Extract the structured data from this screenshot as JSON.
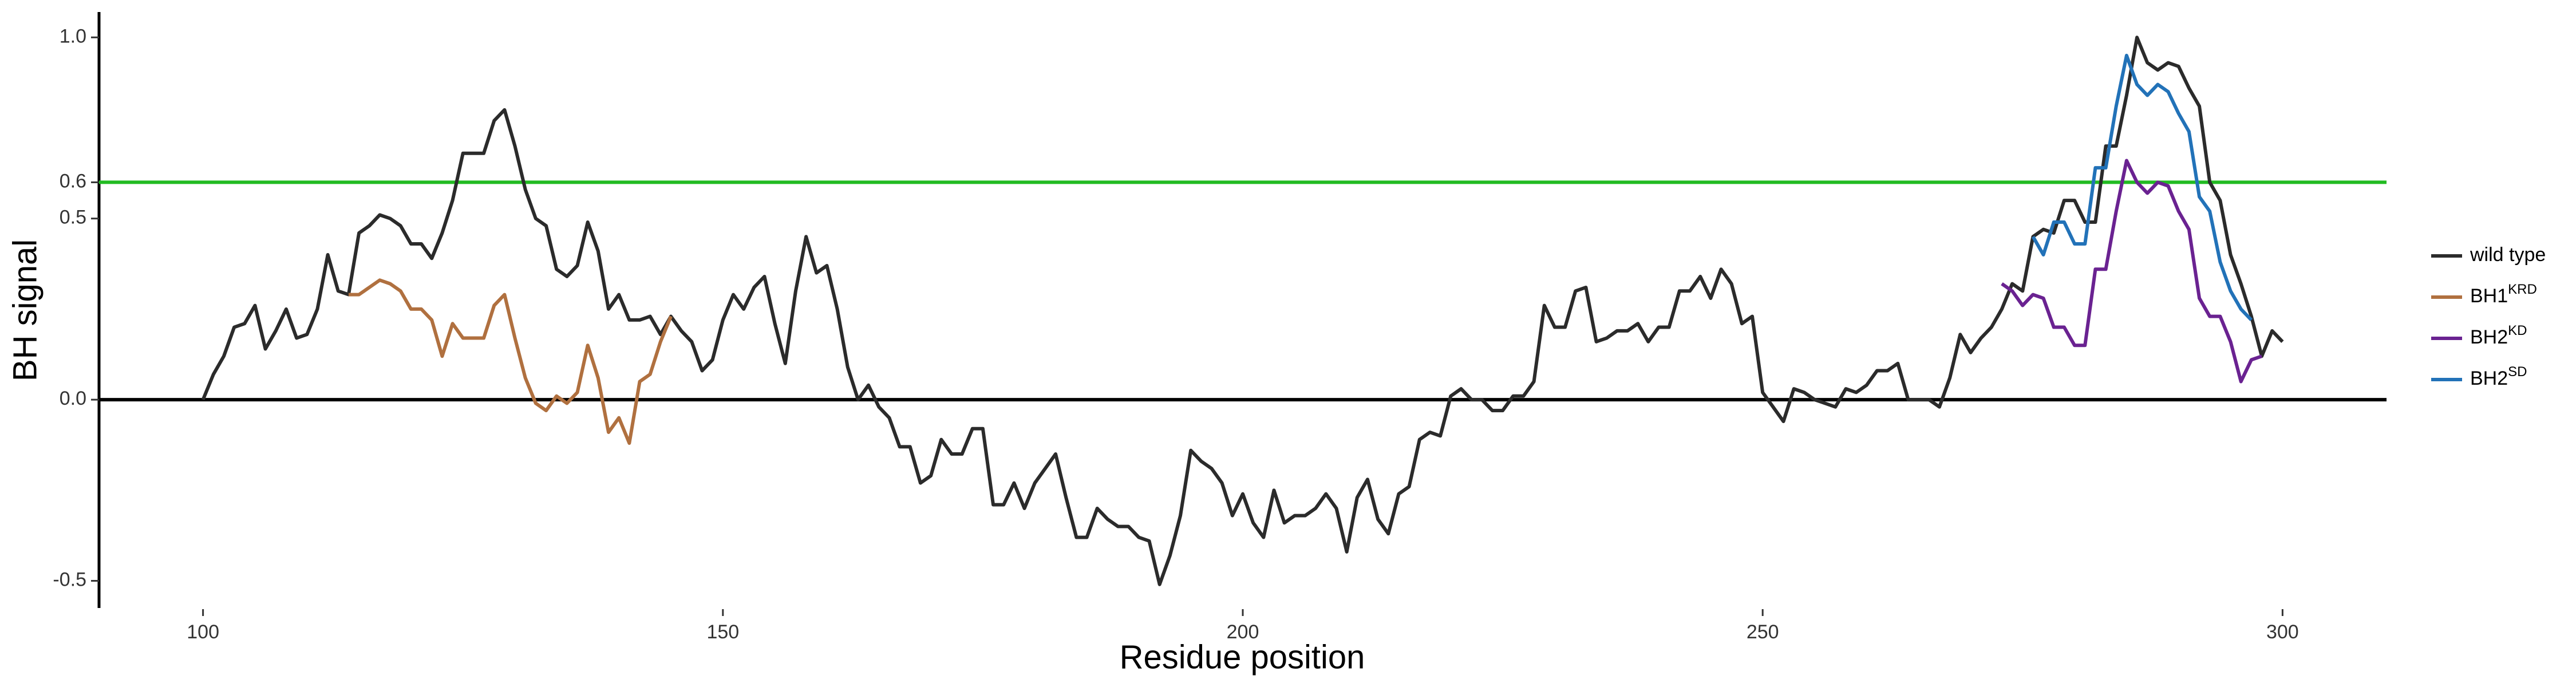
{
  "chart_data": {
    "type": "line",
    "xlabel": "Residue position",
    "ylabel": "BH signal",
    "xlim": [
      90,
      310
    ],
    "ylim": [
      -0.575,
      1.07
    ],
    "xticks": [
      100,
      150,
      200,
      250,
      300
    ],
    "yticks": [
      -0.5,
      {
        "value": 0,
        "label": "0.0"
      },
      0.5,
      0.6,
      {
        "value": 1,
        "label": "1.0"
      }
    ],
    "hlines": [
      {
        "value": 0.6,
        "color": "#22bb22"
      },
      {
        "value": 0,
        "color": "#000000"
      }
    ],
    "legend": "right",
    "series": [
      {
        "name": "wild type",
        "color": "#2b2b2b",
        "x": [
          100,
          101,
          102,
          103,
          104,
          105,
          106,
          107,
          108,
          109,
          110,
          111,
          112,
          113,
          114,
          115,
          116,
          117,
          118,
          119,
          120,
          121,
          122,
          123,
          124,
          125,
          126,
          127,
          128,
          129,
          130,
          131,
          132,
          133,
          134,
          135,
          136,
          137,
          138,
          139,
          140,
          141,
          142,
          143,
          144,
          145,
          146,
          147,
          148,
          149,
          150,
          151,
          152,
          153,
          154,
          155,
          156,
          157,
          158,
          159,
          160,
          161,
          162,
          163,
          164,
          165,
          166,
          167,
          168,
          169,
          170,
          171,
          172,
          173,
          174,
          175,
          176,
          177,
          178,
          179,
          180,
          181,
          182,
          183,
          184,
          185,
          186,
          187,
          188,
          189,
          190,
          191,
          192,
          193,
          194,
          195,
          196,
          197,
          198,
          199,
          200,
          201,
          202,
          203,
          204,
          205,
          206,
          207,
          208,
          209,
          210,
          211,
          212,
          213,
          214,
          215,
          216,
          217,
          218,
          219,
          220,
          221,
          222,
          223,
          224,
          225,
          226,
          227,
          228,
          229,
          230,
          231,
          232,
          233,
          234,
          235,
          236,
          237,
          238,
          239,
          240,
          241,
          242,
          243,
          244,
          245,
          246,
          247,
          248,
          249,
          250,
          251,
          252,
          253,
          254,
          255,
          256,
          257,
          258,
          259,
          260,
          261,
          262,
          263,
          264,
          265,
          266,
          267,
          268,
          269,
          270,
          271,
          272,
          273,
          274,
          275,
          276,
          277,
          278,
          279,
          280,
          281,
          282,
          283,
          284,
          285,
          286,
          287,
          288,
          289,
          290,
          291,
          292,
          293,
          294,
          295,
          296,
          297,
          298,
          299,
          300
        ],
        "values": [
          0,
          0.07,
          0.12,
          0.2,
          0.21,
          0.26,
          0.14,
          0.19,
          0.25,
          0.17,
          0.18,
          0.25,
          0.4,
          0.3,
          0.29,
          0.46,
          0.48,
          0.51,
          0.5,
          0.48,
          0.43,
          0.43,
          0.39,
          0.46,
          0.55,
          0.68,
          0.68,
          0.68,
          0.77,
          0.8,
          0.7,
          0.58,
          0.5,
          0.48,
          0.36,
          0.34,
          0.37,
          0.49,
          0.41,
          0.25,
          0.29,
          0.22,
          0.22,
          0.23,
          0.18,
          0.23,
          0.19,
          0.16,
          0.08,
          0.11,
          0.22,
          0.29,
          0.25,
          0.31,
          0.34,
          0.21,
          0.1,
          0.3,
          0.45,
          0.35,
          0.37,
          0.25,
          0.09,
          0,
          0.04,
          -0.02,
          -0.05,
          -0.13,
          -0.13,
          -0.23,
          -0.21,
          -0.11,
          -0.15,
          -0.15,
          -0.08,
          -0.08,
          -0.29,
          -0.29,
          -0.23,
          -0.3,
          -0.23,
          -0.19,
          -0.15,
          -0.27,
          -0.38,
          -0.38,
          -0.3,
          -0.33,
          -0.35,
          -0.35,
          -0.38,
          -0.39,
          -0.51,
          -0.43,
          -0.32,
          -0.14,
          -0.17,
          -0.19,
          -0.23,
          -0.32,
          -0.26,
          -0.34,
          -0.38,
          -0.25,
          -0.34,
          -0.32,
          -0.32,
          -0.3,
          -0.26,
          -0.3,
          -0.42,
          -0.27,
          -0.22,
          -0.33,
          -0.37,
          -0.26,
          -0.24,
          -0.11,
          -0.09,
          -0.1,
          0.01,
          0.03,
          0,
          0,
          -0.03,
          -0.03,
          0.01,
          0.01,
          0.05,
          0.26,
          0.2,
          0.2,
          0.3,
          0.31,
          0.16,
          0.17,
          0.19,
          0.19,
          0.21,
          0.16,
          0.2,
          0.2,
          0.3,
          0.3,
          0.34,
          0.28,
          0.36,
          0.32,
          0.21,
          0.23,
          0.02,
          -0.02,
          -0.06,
          0.03,
          0.02,
          0,
          -0.01,
          -0.02,
          0.03,
          0.02,
          0.04,
          0.08,
          0.08,
          0.1,
          0,
          0,
          0,
          -0.02,
          0.06,
          0.18,
          0.13,
          0.17,
          0.2,
          0.25,
          0.32,
          0.3,
          0.45,
          0.47,
          0.46,
          0.55,
          0.55,
          0.49,
          0.49,
          0.7,
          0.7,
          0.84,
          1.0,
          0.93,
          0.91,
          0.93,
          0.92,
          0.86,
          0.81,
          0.6,
          0.55,
          0.4,
          0.32,
          0.23,
          0.12,
          0.19,
          0.16
        ]
      },
      {
        "name": "BH1",
        "superscript": "KRD",
        "color": "#b0703f",
        "x": [
          114,
          115,
          116,
          117,
          118,
          119,
          120,
          121,
          122,
          123,
          124,
          125,
          126,
          127,
          128,
          129,
          130,
          131,
          132,
          133,
          134,
          135,
          136,
          137,
          138,
          139,
          140,
          141,
          142,
          143,
          144,
          145
        ],
        "values": [
          0.29,
          0.29,
          0.31,
          0.33,
          0.32,
          0.3,
          0.25,
          0.25,
          0.22,
          0.12,
          0.21,
          0.17,
          0.17,
          0.17,
          0.26,
          0.29,
          0.17,
          0.06,
          -0.01,
          -0.03,
          0.01,
          -0.01,
          0.02,
          0.15,
          0.06,
          -0.09,
          -0.05,
          -0.12,
          0.05,
          0.07,
          0.16,
          0.23
        ]
      },
      {
        "name": "BH2",
        "superscript": "KD",
        "color": "#6a2291",
        "x": [
          273,
          274,
          275,
          276,
          277,
          278,
          279,
          280,
          281,
          282,
          283,
          284,
          285,
          286,
          287,
          288,
          289,
          290,
          291,
          292,
          293,
          294,
          295,
          296,
          297,
          298
        ],
        "values": [
          0.32,
          0.3,
          0.26,
          0.29,
          0.28,
          0.2,
          0.2,
          0.15,
          0.15,
          0.36,
          0.36,
          0.52,
          0.66,
          0.6,
          0.57,
          0.6,
          0.59,
          0.52,
          0.47,
          0.28,
          0.23,
          0.23,
          0.16,
          0.05,
          0.11,
          0.12
        ]
      },
      {
        "name": "BH2",
        "superscript": "SD",
        "color": "#2272b8",
        "x": [
          276,
          277,
          278,
          279,
          280,
          281,
          282,
          283,
          284,
          285,
          286,
          287,
          288,
          289,
          290,
          291,
          292,
          293,
          294,
          295,
          296,
          297
        ],
        "values": [
          0.45,
          0.4,
          0.49,
          0.49,
          0.43,
          0.43,
          0.64,
          0.64,
          0.81,
          0.95,
          0.87,
          0.84,
          0.87,
          0.85,
          0.79,
          0.74,
          0.56,
          0.52,
          0.38,
          0.3,
          0.25,
          0.22
        ]
      }
    ]
  }
}
